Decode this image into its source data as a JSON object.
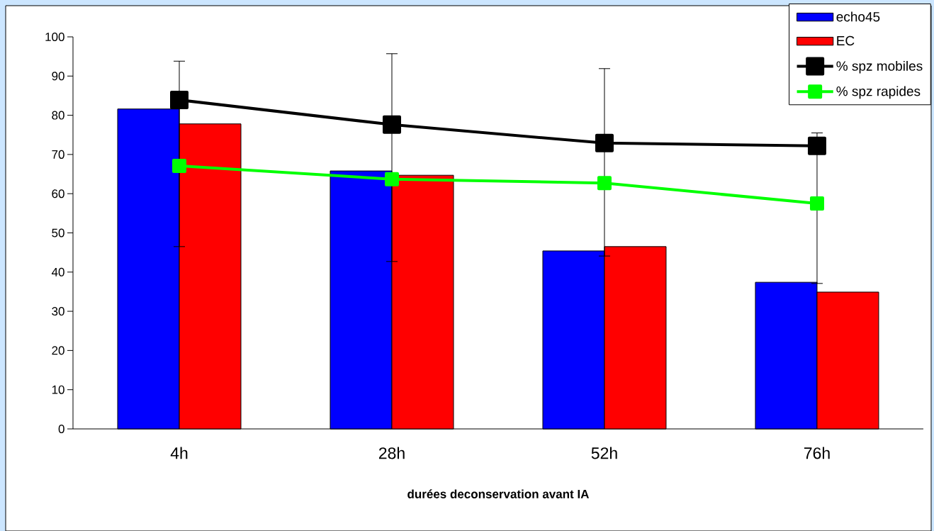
{
  "chart_data": {
    "type": "bar",
    "xlabel": "durées deconservation avant IA",
    "categories": [
      "4h",
      "28h",
      "52h",
      "76h"
    ],
    "ylim": [
      0,
      100
    ],
    "yticks": [
      0,
      10,
      20,
      30,
      40,
      50,
      60,
      70,
      80,
      90,
      100
    ],
    "legend": "top right",
    "marker": "square",
    "line_style": "solid",
    "series": [
      {
        "name": "echo45",
        "color": "#0000ff",
        "values": [
          81.6,
          65.8,
          45.4,
          37.4
        ]
      },
      {
        "name": "EC",
        "color": "#ff0000",
        "values": [
          77.8,
          64.7,
          46.5,
          34.9
        ]
      },
      {
        "name": "% spz mobiles",
        "type": "line",
        "color": "#000000",
        "values": [
          83.9,
          77.6,
          72.9,
          72.2
        ],
        "errors": [
          [
            46.5,
            93.8
          ],
          [
            42.7,
            95.7
          ],
          [
            44.1,
            91.9
          ],
          [
            37.1,
            75.5
          ]
        ]
      },
      {
        "name": "% spz rapides",
        "type": "line",
        "color": "#00ff00",
        "values": [
          67.1,
          63.7,
          62.7,
          57.5
        ]
      }
    ]
  }
}
